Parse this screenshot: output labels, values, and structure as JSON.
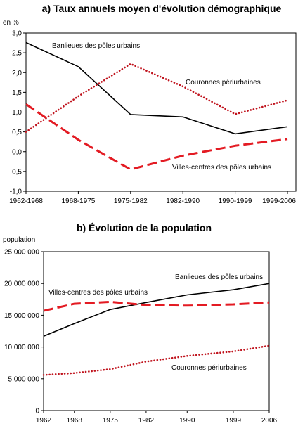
{
  "chart_data": [
    {
      "type": "line",
      "title": "a) Taux annuels moyen d'évolution démographique",
      "ylabel": "en %",
      "categories": [
        "1962-1968",
        "1968-1975",
        "1975-1982",
        "1982-1990",
        "1990-1999",
        "1999-2006"
      ],
      "ylim": [
        -1.0,
        3.0
      ],
      "yticks": [
        "3,0",
        "2,5",
        "2,0",
        "1,5",
        "1,0",
        "0,5",
        "0,0",
        "-0,5",
        "-1,0"
      ],
      "grid": false,
      "series": [
        {
          "name": "Banlieues des pôles urbains",
          "color": "#000000",
          "dash": "solid",
          "values": [
            2.76,
            2.15,
            0.94,
            0.88,
            0.45,
            0.63
          ]
        },
        {
          "name": "Couronnes périurbaines",
          "color": "#c0141e",
          "dash": "dotted",
          "values": [
            0.5,
            1.4,
            2.22,
            1.65,
            0.95,
            1.3
          ]
        },
        {
          "name": "Villes-centres des pôles urbains",
          "color": "#e31b23",
          "dash": "dashed",
          "values": [
            1.2,
            0.3,
            -0.45,
            -0.1,
            0.15,
            0.32
          ]
        }
      ]
    },
    {
      "type": "line",
      "title": "b) Évolution de la population",
      "ylabel": "population",
      "x": [
        1962,
        1968,
        1975,
        1982,
        1990,
        1999,
        2006
      ],
      "xticks": [
        "1962",
        "1968",
        "1975",
        "1982",
        "1990",
        "1999",
        "2006"
      ],
      "ylim": [
        0,
        25000000
      ],
      "yticks": [
        "25 000 000",
        "20 000 000",
        "15 000 000",
        "10 000 000",
        "5 000 000",
        "0"
      ],
      "grid": false,
      "series": [
        {
          "name": "Banlieues des pôles urbains",
          "color": "#000000",
          "dash": "solid",
          "values": [
            11700000,
            13700000,
            15900000,
            17000000,
            18200000,
            19000000,
            20000000
          ]
        },
        {
          "name": "Villes-centres des pôles urbains",
          "color": "#e31b23",
          "dash": "dashed",
          "values": [
            15700000,
            16800000,
            17100000,
            16600000,
            16500000,
            16700000,
            17000000
          ]
        },
        {
          "name": "Couronnes périurbaines",
          "color": "#c0141e",
          "dash": "dotted",
          "values": [
            5600000,
            5900000,
            6500000,
            7700000,
            8600000,
            9300000,
            10200000
          ]
        }
      ]
    }
  ]
}
